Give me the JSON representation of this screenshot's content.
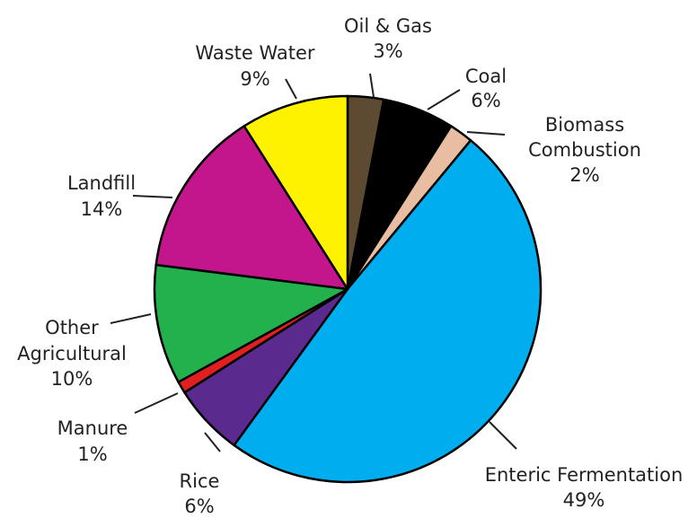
{
  "chart_data": {
    "type": "pie",
    "title": "",
    "start_angle_deg": 0,
    "direction": "clockwise",
    "slice_border_color": "#000000",
    "slices": [
      {
        "label": "Oil & Gas",
        "percent_label": "3%",
        "value": 3,
        "color": "#5c4a33"
      },
      {
        "label": "Coal",
        "percent_label": "6%",
        "value": 6,
        "color": "#000000"
      },
      {
        "label": "Biomass Combustion",
        "percent_label": "2%",
        "value": 2,
        "color": "#e8bda2"
      },
      {
        "label": "Enteric Fermentation",
        "percent_label": "49%",
        "value": 49,
        "color": "#00aeef"
      },
      {
        "label": "Rice",
        "percent_label": "6%",
        "value": 6,
        "color": "#5b2a8e"
      },
      {
        "label": "Manure",
        "percent_label": "1%",
        "value": 1,
        "color": "#e02020"
      },
      {
        "label": "Other Agricultural",
        "percent_label": "10%",
        "value": 10,
        "color": "#22b14c"
      },
      {
        "label": "Landfill",
        "percent_label": "14%",
        "value": 14,
        "color": "#c4168c"
      },
      {
        "label": "Waste Water",
        "percent_label": "9%",
        "value": 9,
        "color": "#fff200"
      }
    ]
  }
}
